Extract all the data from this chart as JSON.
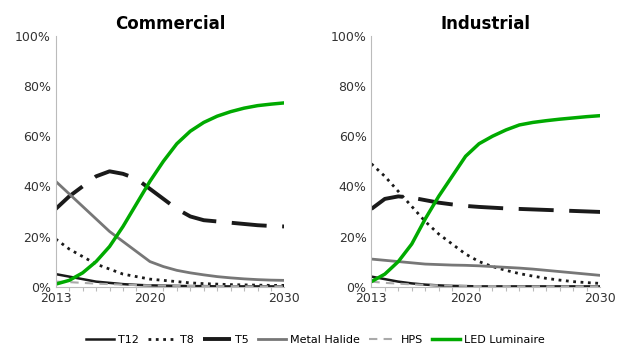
{
  "years": [
    2013,
    2014,
    2015,
    2016,
    2017,
    2018,
    2019,
    2020,
    2021,
    2022,
    2023,
    2024,
    2025,
    2026,
    2027,
    2028,
    2029,
    2030
  ],
  "commercial": {
    "T12": [
      0.05,
      0.04,
      0.03,
      0.02,
      0.015,
      0.01,
      0.007,
      0.005,
      0.004,
      0.003,
      0.002,
      0.002,
      0.001,
      0.001,
      0.001,
      0.001,
      0.001,
      0.001
    ],
    "T8": [
      0.19,
      0.15,
      0.12,
      0.09,
      0.07,
      0.05,
      0.04,
      0.03,
      0.025,
      0.02,
      0.015,
      0.012,
      0.01,
      0.008,
      0.007,
      0.006,
      0.005,
      0.005
    ],
    "T5": [
      0.31,
      0.36,
      0.4,
      0.44,
      0.46,
      0.45,
      0.43,
      0.39,
      0.35,
      0.31,
      0.28,
      0.265,
      0.26,
      0.255,
      0.25,
      0.245,
      0.242,
      0.24
    ],
    "MetalHalide": [
      0.42,
      0.37,
      0.32,
      0.27,
      0.22,
      0.18,
      0.14,
      0.1,
      0.08,
      0.065,
      0.055,
      0.047,
      0.04,
      0.035,
      0.031,
      0.028,
      0.026,
      0.025
    ],
    "HPS": [
      0.02,
      0.018,
      0.015,
      0.012,
      0.01,
      0.008,
      0.006,
      0.005,
      0.004,
      0.003,
      0.003,
      0.002,
      0.002,
      0.002,
      0.001,
      0.001,
      0.001,
      0.001
    ],
    "LED": [
      0.01,
      0.025,
      0.055,
      0.1,
      0.16,
      0.24,
      0.33,
      0.42,
      0.5,
      0.57,
      0.62,
      0.655,
      0.68,
      0.698,
      0.712,
      0.722,
      0.728,
      0.733
    ]
  },
  "industrial": {
    "T12": [
      0.04,
      0.03,
      0.02,
      0.013,
      0.008,
      0.005,
      0.003,
      0.002,
      0.001,
      0.001,
      0.001,
      0.001,
      0.001,
      0.001,
      0.001,
      0.001,
      0.001,
      0.001
    ],
    "T8": [
      0.49,
      0.44,
      0.38,
      0.32,
      0.26,
      0.21,
      0.17,
      0.13,
      0.1,
      0.08,
      0.065,
      0.052,
      0.042,
      0.033,
      0.026,
      0.02,
      0.016,
      0.013
    ],
    "T5": [
      0.31,
      0.35,
      0.36,
      0.355,
      0.345,
      0.335,
      0.328,
      0.322,
      0.318,
      0.315,
      0.312,
      0.31,
      0.308,
      0.306,
      0.304,
      0.302,
      0.3,
      0.298
    ],
    "MetalHalide": [
      0.11,
      0.105,
      0.1,
      0.095,
      0.09,
      0.088,
      0.086,
      0.085,
      0.083,
      0.08,
      0.077,
      0.074,
      0.07,
      0.065,
      0.06,
      0.055,
      0.05,
      0.045
    ],
    "HPS": [
      0.02,
      0.015,
      0.012,
      0.009,
      0.007,
      0.005,
      0.004,
      0.003,
      0.002,
      0.002,
      0.002,
      0.001,
      0.001,
      0.001,
      0.001,
      0.001,
      0.001,
      0.001
    ],
    "LED": [
      0.02,
      0.05,
      0.1,
      0.17,
      0.27,
      0.36,
      0.44,
      0.52,
      0.57,
      0.6,
      0.625,
      0.645,
      0.655,
      0.662,
      0.668,
      0.673,
      0.678,
      0.682
    ]
  },
  "series_styles": {
    "T12": {
      "color": "#1a1a1a",
      "linestyle": "-",
      "linewidth": 1.8
    },
    "T8": {
      "color": "#1a1a1a",
      "linestyle": ":",
      "linewidth": 2.0
    },
    "T5": {
      "color": "#1a1a1a",
      "linestyle": "--",
      "linewidth": 2.8
    },
    "MetalHalide": {
      "color": "#777777",
      "linestyle": "-",
      "linewidth": 2.0
    },
    "HPS": {
      "color": "#aaaaaa",
      "linestyle": "--",
      "linewidth": 1.5
    },
    "LED": {
      "color": "#00aa00",
      "linestyle": "-",
      "linewidth": 2.5
    }
  },
  "title_commercial": "Commercial",
  "title_industrial": "Industrial",
  "yticks": [
    0.0,
    0.2,
    0.4,
    0.6,
    0.8,
    1.0
  ],
  "ytick_labels": [
    "0%",
    "20%",
    "40%",
    "60%",
    "80%",
    "100%"
  ],
  "xticks": [
    2013,
    2020,
    2030
  ],
  "background_color": "#ffffff"
}
